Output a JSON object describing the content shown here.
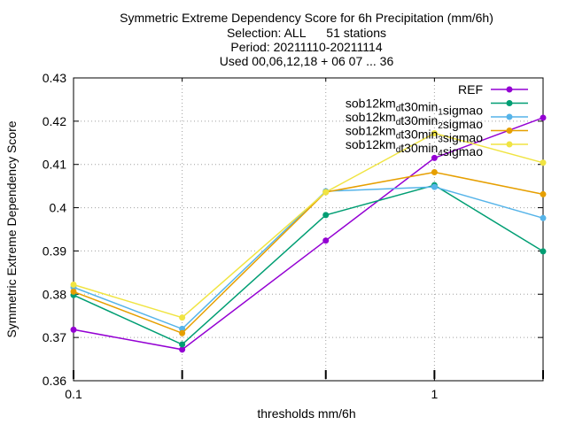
{
  "chart_data": {
    "type": "line",
    "title_lines": [
      "Symmetric Extreme Dependency Score  for 6h Precipitation (mm/6h)",
      "Selection: ALL      51 stations",
      "Period: 20211110-20211114",
      "Used 00,06,12,18 + 06 07 ... 36"
    ],
    "xlabel": "thresholds mm/6h",
    "ylabel": "Symmetric Extreme Dependency Score",
    "x_scale": "log",
    "xlim": [
      0.1,
      2
    ],
    "ylim": [
      0.36,
      0.43
    ],
    "x_ticks": [
      {
        "value": 0.1,
        "label": "0.1"
      },
      {
        "value": 1,
        "label": "1"
      }
    ],
    "y_ticks": [
      {
        "value": 0.36,
        "label": "0.36"
      },
      {
        "value": 0.37,
        "label": "0.37"
      },
      {
        "value": 0.38,
        "label": "0.38"
      },
      {
        "value": 0.39,
        "label": "0.39"
      },
      {
        "value": 0.4,
        "label": "0.4"
      },
      {
        "value": 0.41,
        "label": "0.41"
      },
      {
        "value": 0.42,
        "label": "0.42"
      },
      {
        "value": 0.43,
        "label": "0.43"
      }
    ],
    "grid": true,
    "legend_position": "top-right",
    "x": [
      0.1,
      0.2,
      0.5,
      1,
      2
    ],
    "series": [
      {
        "name": "REF",
        "name_parts": [
          [
            "REF",
            ""
          ]
        ],
        "color": "#9400d3",
        "values": [
          0.3718,
          0.3672,
          0.3924,
          0.4115,
          0.4208
        ]
      },
      {
        "name": "sob12km_dt30min_1sigmao",
        "name_parts": [
          [
            "sob12km",
            ""
          ],
          [
            "d",
            "sub"
          ],
          [
            "t30min",
            ""
          ],
          [
            "1",
            "sub"
          ],
          [
            "sigmao",
            ""
          ]
        ],
        "color": "#009e73",
        "values": [
          0.3798,
          0.3684,
          0.3983,
          0.4052,
          0.3899
        ]
      },
      {
        "name": "sob12km_dt30min_2sigmao",
        "name_parts": [
          [
            "sob12km",
            ""
          ],
          [
            "d",
            "sub"
          ],
          [
            "t30min",
            ""
          ],
          [
            "2",
            "sub"
          ],
          [
            "sigmao",
            ""
          ]
        ],
        "color": "#56b4e9",
        "values": [
          0.3816,
          0.372,
          0.4038,
          0.4048,
          0.3976
        ]
      },
      {
        "name": "sob12km_dt30min_3sigmao",
        "name_parts": [
          [
            "sob12km",
            ""
          ],
          [
            "d",
            "sub"
          ],
          [
            "t30min",
            ""
          ],
          [
            "3",
            "sub"
          ],
          [
            "sigmao",
            ""
          ]
        ],
        "color": "#e69f00",
        "values": [
          0.3806,
          0.371,
          0.4036,
          0.4082,
          0.4031
        ]
      },
      {
        "name": "sob12km_dt30min_4sigmao",
        "name_parts": [
          [
            "sob12km",
            ""
          ],
          [
            "d",
            "sub"
          ],
          [
            "t30min",
            ""
          ],
          [
            "4",
            "sub"
          ],
          [
            "sigmao",
            ""
          ]
        ],
        "color": "#f0e442",
        "values": [
          0.3822,
          0.3746,
          0.4036,
          0.4172,
          0.4104
        ]
      }
    ]
  }
}
